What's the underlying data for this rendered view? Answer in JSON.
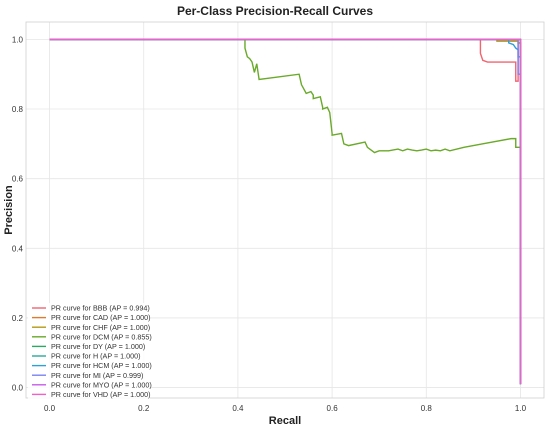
{
  "chart_data": {
    "type": "line",
    "title": "Per-Class Precision-Recall Curves",
    "xlabel": "Recall",
    "ylabel": "Precision",
    "xlim": [
      -0.05,
      1.05
    ],
    "ylim": [
      -0.03,
      1.05
    ],
    "xticks": [
      0.0,
      0.2,
      0.4,
      0.6,
      0.8,
      1.0
    ],
    "yticks": [
      0.0,
      0.2,
      0.4,
      0.6,
      0.8,
      1.0
    ],
    "xtick_labels": [
      "0.0",
      "0.2",
      "0.4",
      "0.6",
      "0.8",
      "1.0"
    ],
    "ytick_labels": [
      "0.0",
      "0.2",
      "0.4",
      "0.6",
      "0.8",
      "1.0"
    ],
    "grid": true,
    "legend_position": "lower-left",
    "series": [
      {
        "name": "PR curve for BBB (AP = 0.994)",
        "color": "#f26470",
        "x": [
          0.0,
          0.915,
          0.915,
          0.92,
          0.93,
          0.97,
          0.985,
          0.99,
          0.99,
          0.995,
          0.995,
          1.0,
          1.0
        ],
        "y": [
          1.0,
          1.0,
          0.96,
          0.94,
          0.935,
          0.935,
          0.935,
          0.935,
          0.88,
          0.88,
          0.99,
          0.99,
          0.01
        ]
      },
      {
        "name": "PR curve for CAD (AP = 1.000)",
        "color": "#e07a2e",
        "x": [
          0.0,
          1.0,
          1.0
        ],
        "y": [
          1.0,
          1.0,
          0.01
        ]
      },
      {
        "name": "PR curve for CHF (AP = 1.000)",
        "color": "#b59a16",
        "x": [
          0.0,
          0.95,
          0.95,
          0.995,
          0.995,
          1.0,
          1.0
        ],
        "y": [
          1.0,
          1.0,
          0.995,
          0.995,
          0.99,
          0.99,
          0.01
        ]
      },
      {
        "name": "PR curve for DCM (AP = 0.855)",
        "color": "#6aaa2a",
        "x": [
          0.0,
          0.415,
          0.415,
          0.42,
          0.425,
          0.43,
          0.435,
          0.44,
          0.445,
          0.53,
          0.535,
          0.545,
          0.555,
          0.56,
          0.56,
          0.575,
          0.58,
          0.58,
          0.59,
          0.595,
          0.6,
          0.6,
          0.62,
          0.625,
          0.635,
          0.67,
          0.675,
          0.68,
          0.69,
          0.7,
          0.72,
          0.74,
          0.75,
          0.76,
          0.77,
          0.78,
          0.79,
          0.8,
          0.81,
          0.82,
          0.83,
          0.84,
          0.85,
          0.88,
          0.92,
          0.98,
          0.99,
          0.99,
          1.0,
          1.0
        ],
        "y": [
          1.0,
          1.0,
          0.975,
          0.95,
          0.945,
          0.935,
          0.905,
          0.93,
          0.885,
          0.9,
          0.87,
          0.845,
          0.85,
          0.84,
          0.83,
          0.835,
          0.805,
          0.8,
          0.805,
          0.79,
          0.73,
          0.725,
          0.73,
          0.7,
          0.695,
          0.705,
          0.69,
          0.685,
          0.675,
          0.68,
          0.68,
          0.685,
          0.68,
          0.685,
          0.682,
          0.68,
          0.682,
          0.685,
          0.68,
          0.682,
          0.68,
          0.685,
          0.68,
          0.69,
          0.7,
          0.715,
          0.715,
          0.69,
          0.69,
          0.01
        ]
      },
      {
        "name": "PR curve for DY (AP = 1.000)",
        "color": "#2ca865",
        "x": [
          0.0,
          1.0,
          1.0
        ],
        "y": [
          1.0,
          1.0,
          0.01
        ]
      },
      {
        "name": "PR curve for H (AP = 1.000)",
        "color": "#2aa89a",
        "x": [
          0.0,
          1.0,
          1.0
        ],
        "y": [
          1.0,
          1.0,
          0.01
        ]
      },
      {
        "name": "PR curve for HCM (AP = 1.000)",
        "color": "#2e9fd8",
        "x": [
          0.0,
          0.975,
          0.975,
          0.985,
          0.99,
          0.995,
          0.995,
          1.0,
          1.0
        ],
        "y": [
          1.0,
          1.0,
          0.99,
          0.985,
          0.975,
          0.97,
          0.95,
          0.95,
          0.01
        ]
      },
      {
        "name": "PR curve for MI (AP = 0.999)",
        "color": "#7a83f2",
        "x": [
          0.0,
          0.995,
          0.995,
          1.0,
          1.0
        ],
        "y": [
          1.0,
          1.0,
          0.9,
          0.9,
          0.01
        ]
      },
      {
        "name": "PR curve for MYO (AP = 1.000)",
        "color": "#c65ce8",
        "x": [
          0.0,
          1.0,
          1.0
        ],
        "y": [
          1.0,
          1.0,
          0.01
        ]
      },
      {
        "name": "PR curve for VHD (AP = 1.000)",
        "color": "#f060c8",
        "x": [
          0.0,
          1.0,
          1.0
        ],
        "y": [
          1.0,
          1.0,
          0.01
        ]
      }
    ]
  }
}
